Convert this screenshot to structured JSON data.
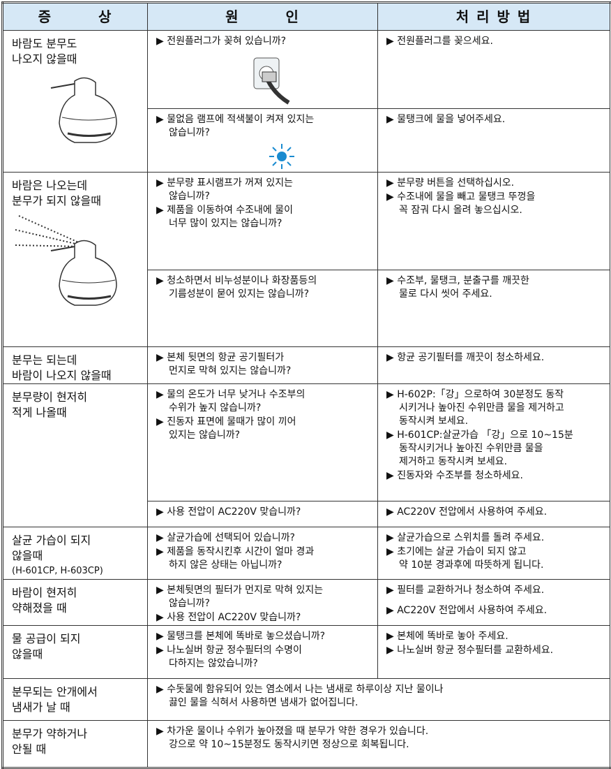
{
  "header": [
    "증　　　상",
    "원　　　인",
    "처 리 방 법"
  ],
  "rows": [
    {
      "symptom": [
        "바람도 분무도",
        "나오지 않을때"
      ],
      "parts": [
        {
          "cause": [
            [
              "▶ 전원플러그가 꽂혀 있습니까?"
            ]
          ],
          "remedy": [
            [
              "▶ 전원플러그를 꽂으세요."
            ]
          ]
        },
        {
          "cause": [
            [
              "▶ 물없음 램프에 적색불이 켜져 있지는",
              "않습니까?"
            ]
          ],
          "remedy": [
            [
              "▶ 물탱크에 물을 넣어주세요."
            ]
          ]
        }
      ]
    },
    {
      "symptom": [
        "바람은 나오는데",
        "분무가 되지 않을때"
      ],
      "parts": [
        {
          "cause": [
            [
              "▶ 분무량 표시램프가 꺼져 있지는",
              "않습니까?"
            ],
            [
              "▶ 제품을 이동하여 수조내에 물이",
              "너무 많이 있지는 않습니까?"
            ]
          ],
          "remedy": [
            [
              "▶ 분무량 버튼을 선택하십시오."
            ],
            [
              "▶ 수조내에 물을 빼고 물탱크 뚜껑을",
              "꼭 잠궈 다시 올려 놓으십시오."
            ]
          ]
        },
        {
          "cause": [
            [
              "▶ 청소하면서 비누성분이나 화장품등의",
              "기름성분이 묻어 있지는 않습니까?"
            ]
          ],
          "remedy": [
            [
              "▶ 수조부, 물탱크, 분출구를 깨끗한",
              "물로 다시 씻어 주세요."
            ]
          ]
        }
      ]
    },
    {
      "symptom": [
        "분무는 되는데",
        "바람이 나오지 않을때"
      ],
      "parts": [
        {
          "cause": [
            [
              "▶ 본체 뒷면의 항균 공기필터가",
              "먼지로 막혀 있지는 않습니까?"
            ]
          ],
          "remedy": [
            [
              "▶ 항균 공기필터를 깨끗이 청소하세요."
            ]
          ]
        }
      ]
    },
    {
      "symptom": [
        "분무량이 현저히",
        "적게 나올때"
      ],
      "parts": [
        {
          "cause": [
            [
              "▶ 물의 온도가 너무 낮거나 수조부의",
              "수위가 높지 않습니까?"
            ],
            [
              "▶ 진동자 표면에 물때가 많이 끼어",
              "있지는 않습니까?"
            ]
          ],
          "remedy": [
            [
              "▶ H-602P:「강」으로하여 30분정도 동작",
              "시키거나 높아진 수위만큼 물을 제거하고",
              "동작시켜 보세요."
            ],
            [
              "▶ H-601CP:살균가습 「강」으로 10~15분",
              "동작시키거나 높아진 수위만큼 물을",
              "제거하고 동작시켜 보세요."
            ],
            [
              "▶ 진동자와 수조부를 청소하세요."
            ]
          ]
        },
        {
          "cause": [
            [
              "▶ 사용 전압이 AC220V 맞습니까?"
            ]
          ],
          "remedy": [
            [
              "▶ AC220V 전압에서 사용하여 주세요."
            ]
          ]
        }
      ]
    },
    {
      "symptom": [
        "살균 가습이 되지",
        "않을때",
        "(H-601CP, H-603CP)"
      ],
      "parts": [
        {
          "cause": [
            [
              "▶ 살균가습에 선택되어 있습니까?"
            ],
            [
              "▶ 제품을 동작시킨후 시간이 얼마 경과",
              "하지 않은 상태는 아닙니까?"
            ]
          ],
          "remedy": [
            [
              "▶ 살균가습으로 스위치를 돌려 주세요."
            ],
            [
              "▶ 초기에는 살균 가습이 되지 않고",
              "약 10분 경과후에 따뜻하게 됩니다."
            ]
          ]
        }
      ]
    },
    {
      "symptom": [
        "바람이 현저히",
        "약해졌을 때"
      ],
      "parts": [
        {
          "cause": [
            [
              "▶ 본체뒷면의 필터가 먼지로 막혀 있지는",
              "않습니까?"
            ],
            [
              "▶ 사용 전압이 AC220V 맞습니까?"
            ]
          ],
          "remedy": [
            [
              "▶ 필터를 교환하거나 청소하여 주세요."
            ],
            [
              "▶ AC220V 전압에서 사용하여 주세요."
            ]
          ]
        }
      ]
    },
    {
      "symptom": [
        "물 공급이 되지",
        "않을때"
      ],
      "parts": [
        {
          "cause": [
            [
              "▶ 물탱크를 본체에 똑바로 놓으셨습니까?"
            ],
            [
              "▶ 나노실버 항균 정수필터의 수명이",
              "다하지는 않았습니까?"
            ]
          ],
          "remedy": [
            [
              "▶ 본체에 똑바로 놓아 주세요."
            ],
            [
              "▶ 나노실버 항균 정수필터를 교환하세요."
            ]
          ]
        }
      ]
    },
    {
      "symptom": [
        "분무되는 안개에서",
        "냄새가 날 때"
      ],
      "parts": [
        {
          "note": [
            [
              "▶ 수돗물에 함유되어 있는 염소에서 나는 냄새로 하루이상 지난 물이나",
              "끓인 물을 식혀서 사용하면 냄새가 없어집니다."
            ]
          ]
        }
      ]
    },
    {
      "symptom": [
        "분무가 약하거나",
        "안될 때"
      ],
      "parts": [
        {
          "note": [
            [
              "▶ 차가운 물이나 수위가 높아졌을 때 분무가 약한 경우가 있습니다.",
              "강으로 약 10~15분정도 동작시키면 정상으로 회복됩니다."
            ]
          ]
        }
      ]
    }
  ]
}
